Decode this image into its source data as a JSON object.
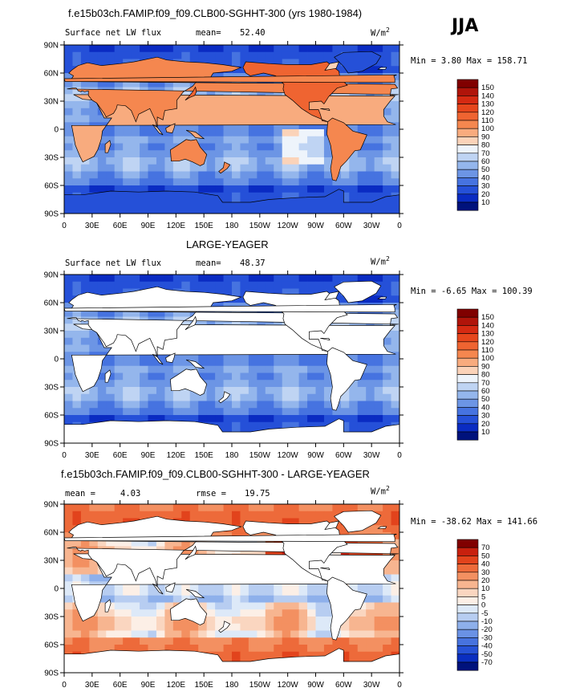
{
  "season": "JJA",
  "colors": {
    "land": "#ffffff",
    "coast": "#000000"
  },
  "axes": {
    "lat_labels": [
      "90N",
      "60N",
      "30N",
      "0",
      "30S",
      "60S",
      "90S"
    ],
    "lon_labels": [
      "0",
      "30E",
      "60E",
      "90E",
      "120E",
      "150E",
      "180",
      "150W",
      "120W",
      "90W",
      "60W",
      "30W",
      "0"
    ]
  },
  "chart_data": [
    {
      "type": "heatmap",
      "title": "f.e15b03ch.FAMIP.f09_f09.CLB00-SGHHT-300 (yrs 1980-1984)",
      "variable": "Surface net LW flux",
      "stat_label": "mean=",
      "stat_value": "52.40",
      "units_base": "W/m",
      "units_exp": "2",
      "min_max": "Min =   3.80 Max = 158.71",
      "scale_labels": [
        "150",
        "140",
        "130",
        "120",
        "110",
        "100",
        "90",
        "80",
        "70",
        "60",
        "50",
        "40",
        "30",
        "20",
        "10"
      ],
      "scale_colors": [
        "#800000",
        "#b0140a",
        "#d52a12",
        "#e6461c",
        "#ef6431",
        "#f5874f",
        "#f8ab7e",
        "#fbd3b9",
        "#eef4fb",
        "#bfd4f3",
        "#94b6ec",
        "#6c95e5",
        "#4673e0",
        "#2550d8",
        "#0a2bc2",
        "#00127c"
      ],
      "land_masked": false
    },
    {
      "type": "heatmap",
      "title": "LARGE-YEAGER",
      "variable": "Surface net LW flux",
      "stat_label": "mean=",
      "stat_value": "48.37",
      "units_base": "W/m",
      "units_exp": "2",
      "min_max": "Min =  -6.65 Max = 100.39",
      "scale_labels": [
        "150",
        "140",
        "130",
        "120",
        "110",
        "100",
        "90",
        "80",
        "70",
        "60",
        "50",
        "40",
        "30",
        "20",
        "10"
      ],
      "scale_colors": [
        "#800000",
        "#b0140a",
        "#d52a12",
        "#e6461c",
        "#ef6431",
        "#f5874f",
        "#f8ab7e",
        "#fbd3b9",
        "#eef4fb",
        "#bfd4f3",
        "#94b6ec",
        "#6c95e5",
        "#4673e0",
        "#2550d8",
        "#0a2bc2",
        "#00127c"
      ],
      "land_masked": true
    },
    {
      "type": "heatmap",
      "title": "f.e15b03ch.FAMIP.f09_f09.CLB00-SGHHT-300 - LARGE-YEAGER",
      "variable": "",
      "stat_label": "mean =",
      "stat_value": "4.03",
      "rmse_label": "rmse =",
      "rmse_value": "19.75",
      "units_base": "W/m",
      "units_exp": "2",
      "min_max": "Min = -38.62 Max = 141.66",
      "scale_labels": [
        "70",
        "50",
        "40",
        "30",
        "20",
        "10",
        "5",
        "0",
        "-5",
        "-10",
        "-20",
        "-30",
        "-40",
        "-50",
        "-70"
      ],
      "scale_colors": [
        "#800000",
        "#c8200e",
        "#e2431c",
        "#ed6a3a",
        "#f39061",
        "#f7b590",
        "#fad6c0",
        "#fcefe6",
        "#dde9f8",
        "#b7cdf1",
        "#8eb0eb",
        "#6a92e5",
        "#4773de",
        "#2652d6",
        "#0a2ec0",
        "#00127c"
      ],
      "land_masked": true
    }
  ]
}
